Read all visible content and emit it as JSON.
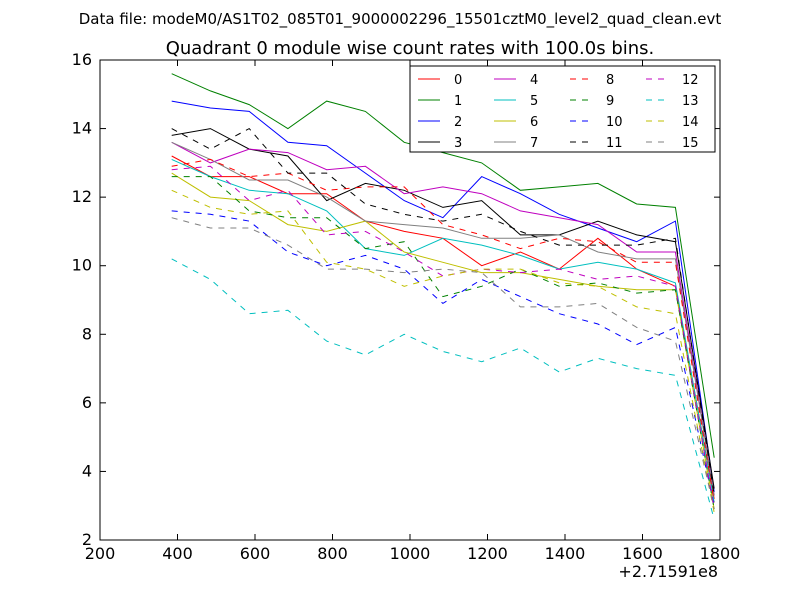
{
  "chart_data": {
    "type": "line",
    "suptitle": "Data file: modeM0/AS1T02_085T01_9000002296_15501cztM0_level2_quad_clean.evt",
    "title": "Quadrant 0 module wise count rates with 100.0s bins.",
    "xlabel": "",
    "ylabel": "",
    "x_offset_label": "+2.71591e8",
    "xlim": [
      200,
      1800
    ],
    "ylim": [
      2,
      16
    ],
    "xticks": [
      200,
      400,
      600,
      800,
      1000,
      1200,
      1400,
      1600,
      1800
    ],
    "yticks": [
      2,
      4,
      6,
      8,
      10,
      12,
      14,
      16
    ],
    "grid": false,
    "legend_position": "top-right",
    "legend_columns": 4,
    "x": [
      385,
      485,
      585,
      685,
      785,
      885,
      985,
      1085,
      1185,
      1285,
      1385,
      1485,
      1585,
      1685,
      1785
    ],
    "series": [
      {
        "name": "0",
        "color": "#ff0000",
        "dash": "solid",
        "values": [
          13.2,
          12.6,
          12.6,
          12.1,
          12.1,
          11.3,
          11.0,
          10.8,
          10.0,
          10.4,
          9.9,
          10.8,
          9.9,
          9.4,
          3.2
        ]
      },
      {
        "name": "1",
        "color": "#008000",
        "dash": "solid",
        "values": [
          15.6,
          15.1,
          14.7,
          14.0,
          14.8,
          14.5,
          13.6,
          13.3,
          13.0,
          12.2,
          12.3,
          12.4,
          11.8,
          11.7,
          4.4
        ]
      },
      {
        "name": "2",
        "color": "#0000ff",
        "dash": "solid",
        "values": [
          14.8,
          14.6,
          14.5,
          13.6,
          13.5,
          12.7,
          11.9,
          11.4,
          12.6,
          12.1,
          11.5,
          11.1,
          10.7,
          11.3,
          3.4
        ]
      },
      {
        "name": "3",
        "color": "#000000",
        "dash": "solid",
        "values": [
          13.8,
          14.0,
          13.4,
          13.2,
          11.9,
          12.4,
          12.2,
          11.7,
          11.9,
          10.9,
          10.9,
          11.3,
          10.9,
          10.7,
          3.5
        ]
      },
      {
        "name": "4",
        "color": "#bf00bf",
        "dash": "solid",
        "values": [
          13.6,
          13.0,
          13.4,
          13.3,
          12.8,
          12.9,
          12.1,
          12.3,
          12.1,
          11.6,
          11.4,
          11.2,
          10.4,
          10.4,
          3.3
        ]
      },
      {
        "name": "5",
        "color": "#00bfbf",
        "dash": "solid",
        "values": [
          13.1,
          12.6,
          12.2,
          12.1,
          11.6,
          10.5,
          10.3,
          10.8,
          10.6,
          10.3,
          9.9,
          10.1,
          9.9,
          9.5,
          3.1
        ]
      },
      {
        "name": "6",
        "color": "#bfbf00",
        "dash": "solid",
        "values": [
          12.7,
          12.0,
          11.9,
          11.2,
          11.0,
          11.3,
          10.4,
          10.1,
          9.8,
          9.8,
          9.6,
          9.4,
          9.3,
          9.3,
          2.9
        ]
      },
      {
        "name": "7",
        "color": "#808080",
        "dash": "solid",
        "values": [
          13.6,
          13.1,
          12.5,
          12.5,
          12.0,
          11.3,
          11.2,
          11.1,
          10.8,
          10.8,
          10.9,
          10.4,
          10.2,
          10.2,
          3.3
        ]
      },
      {
        "name": "8",
        "color": "#ff0000",
        "dash": "dashed",
        "values": [
          12.9,
          13.1,
          12.6,
          12.7,
          12.2,
          12.3,
          12.3,
          11.2,
          10.9,
          10.5,
          10.8,
          10.7,
          10.1,
          10.1,
          3.1
        ]
      },
      {
        "name": "9",
        "color": "#008000",
        "dash": "dashed",
        "values": [
          12.6,
          12.6,
          11.6,
          11.4,
          11.4,
          10.5,
          10.7,
          9.1,
          9.4,
          9.9,
          9.4,
          9.5,
          9.2,
          9.3,
          2.9
        ]
      },
      {
        "name": "10",
        "color": "#0000ff",
        "dash": "dashed",
        "values": [
          11.6,
          11.5,
          11.3,
          10.4,
          10.0,
          10.3,
          9.9,
          8.9,
          9.6,
          9.1,
          8.6,
          8.3,
          7.7,
          8.2,
          3.0
        ]
      },
      {
        "name": "11",
        "color": "#000000",
        "dash": "dashed",
        "values": [
          14.0,
          13.4,
          14.0,
          12.7,
          12.7,
          11.8,
          11.5,
          11.3,
          11.5,
          11.0,
          10.6,
          10.6,
          10.6,
          10.8,
          3.3
        ]
      },
      {
        "name": "12",
        "color": "#bf00bf",
        "dash": "dashed",
        "values": [
          12.8,
          12.9,
          11.9,
          12.2,
          10.9,
          11.0,
          10.4,
          9.7,
          9.9,
          9.8,
          9.9,
          9.6,
          9.7,
          9.4,
          2.9
        ]
      },
      {
        "name": "13",
        "color": "#00bfbf",
        "dash": "dashed",
        "values": [
          10.2,
          9.6,
          8.6,
          8.7,
          7.8,
          7.4,
          8.0,
          7.5,
          7.2,
          7.6,
          6.9,
          7.3,
          7.0,
          6.8,
          2.6
        ]
      },
      {
        "name": "14",
        "color": "#bfbf00",
        "dash": "dashed",
        "values": [
          12.2,
          11.7,
          11.5,
          11.6,
          10.1,
          9.9,
          9.4,
          9.7,
          9.9,
          9.9,
          9.5,
          9.4,
          8.8,
          8.6,
          2.8
        ]
      },
      {
        "name": "15",
        "color": "#808080",
        "dash": "dashed",
        "values": [
          11.4,
          11.1,
          11.1,
          10.6,
          9.9,
          9.9,
          9.8,
          9.9,
          9.8,
          8.8,
          8.8,
          8.9,
          8.2,
          7.8,
          2.9
        ]
      }
    ]
  }
}
